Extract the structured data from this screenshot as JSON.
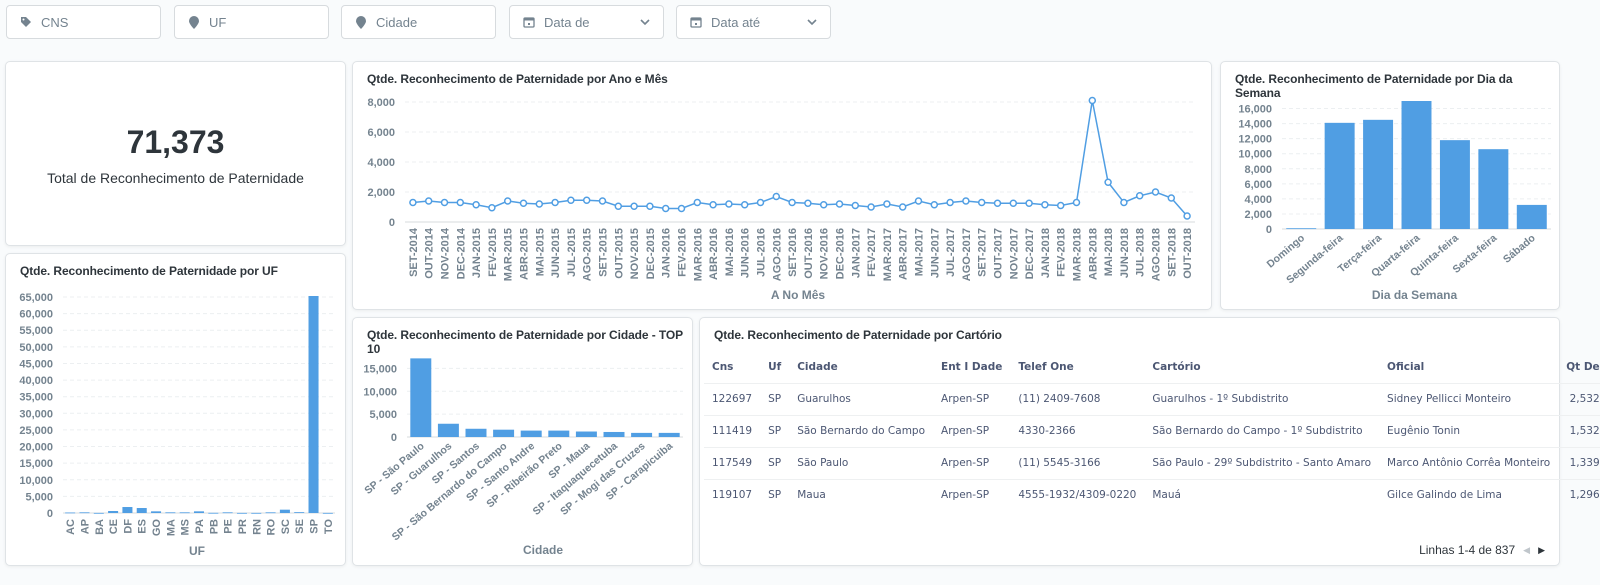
{
  "filters": [
    {
      "label": "CNS",
      "icon": "tag-icon"
    },
    {
      "label": "UF",
      "icon": "location-pin-icon"
    },
    {
      "label": "Cidade",
      "icon": "location-pin-icon"
    },
    {
      "label": "Data de",
      "icon": "calendar-icon",
      "dropdown": true
    },
    {
      "label": "Data até",
      "icon": "calendar-icon",
      "dropdown": true
    }
  ],
  "scalar": {
    "value": "71,373",
    "label": "Total de Reconhecimento de Paternidade"
  },
  "colors": {
    "accent": "#509ee3",
    "muted_text": "#74838f",
    "text": "#2e353b"
  },
  "chart_data": [
    {
      "id": "ano-mes",
      "type": "line",
      "title": "Qtde. Reconhecimento de Paternidade por Ano e Mês",
      "xlabel": "A No Mês",
      "ylabel": "",
      "ylim": [
        0,
        8000
      ],
      "yticks": [
        "0",
        "2,000",
        "4,000",
        "6,000",
        "8,000"
      ],
      "grid": true,
      "x": [
        "SET-2014",
        "OUT-2014",
        "NOV-2014",
        "DEC-2014",
        "JAN-2015",
        "FEV-2015",
        "MAR-2015",
        "ABR-2015",
        "MAI-2015",
        "JUN-2015",
        "JUL-2015",
        "AGO-2015",
        "SET-2015",
        "OUT-2015",
        "NOV-2015",
        "DEC-2015",
        "JAN-2016",
        "FEV-2016",
        "MAR-2016",
        "ABR-2016",
        "MAI-2016",
        "JUN-2016",
        "JUL-2016",
        "AGO-2016",
        "SET-2016",
        "OUT-2016",
        "NOV-2016",
        "DEC-2016",
        "JAN-2017",
        "FEV-2017",
        "MAR-2017",
        "ABR-2017",
        "MAI-2017",
        "JUN-2017",
        "JUL-2017",
        "AGO-2017",
        "SET-2017",
        "OUT-2017",
        "NOV-2017",
        "DEC-2017",
        "JAN-2018",
        "FEV-2018",
        "MAR-2018",
        "ABR-2018",
        "MAI-2018",
        "JUN-2018",
        "JUL-2018",
        "AGO-2018",
        "SET-2018",
        "OUT-2018"
      ],
      "values": [
        1300,
        1400,
        1300,
        1300,
        1150,
        950,
        1400,
        1250,
        1200,
        1300,
        1450,
        1450,
        1400,
        1050,
        1050,
        1050,
        900,
        900,
        1300,
        1150,
        1200,
        1150,
        1300,
        1700,
        1300,
        1250,
        1150,
        1200,
        1100,
        1000,
        1200,
        1000,
        1400,
        1150,
        1300,
        1400,
        1300,
        1250,
        1250,
        1250,
        1150,
        1100,
        1300,
        8100,
        2650,
        1300,
        1750,
        2000,
        1600,
        400
      ]
    },
    {
      "id": "dia-semana",
      "type": "bar",
      "title": "Qtde. Reconhecimento de Paternidade por Dia da Semana",
      "xlabel": "Dia da Semana",
      "ylabel": "",
      "ylim": [
        0,
        17000
      ],
      "yticks": [
        "0",
        "2,000",
        "4,000",
        "6,000",
        "8,000",
        "10,000",
        "12,000",
        "14,000",
        "16,000"
      ],
      "grid": true,
      "categories": [
        "Domingo",
        "Segunda-feira",
        "Terça-feira",
        "Quarta-feira",
        "Quinta-feira",
        "Sexta-feira",
        "Sábado"
      ],
      "values": [
        100,
        14100,
        14500,
        17000,
        11800,
        10600,
        3200
      ]
    },
    {
      "id": "uf",
      "type": "bar",
      "title": "Qtde. Reconhecimento de Paternidade por UF",
      "xlabel": "UF",
      "ylabel": "",
      "ylim": [
        0,
        65000
      ],
      "yticks": [
        "0",
        "5,000",
        "10,000",
        "15,000",
        "20,000",
        "25,000",
        "30,000",
        "35,000",
        "40,000",
        "45,000",
        "50,000",
        "55,000",
        "60,000",
        "65,000"
      ],
      "grid": true,
      "categories": [
        "AC",
        "AP",
        "BA",
        "CE",
        "DF",
        "ES",
        "GO",
        "MA",
        "MS",
        "PA",
        "PB",
        "PE",
        "PR",
        "RN",
        "RO",
        "SC",
        "SE",
        "SP",
        "TO"
      ],
      "values": [
        150,
        200,
        30,
        600,
        1800,
        1500,
        500,
        200,
        200,
        500,
        50,
        200,
        30,
        30,
        200,
        1000,
        250,
        65300,
        30
      ]
    },
    {
      "id": "cidade-top10",
      "type": "bar",
      "title": "Qtde. Reconhecimento de Paternidade por Cidade - TOP 10",
      "xlabel": "Cidade",
      "ylabel": "",
      "ylim": [
        0,
        17500
      ],
      "yticks": [
        "0",
        "5,000",
        "10,000",
        "15,000"
      ],
      "grid": true,
      "categories": [
        "SP - São Paulo",
        "SP - Guarulhos",
        "SP - Santos",
        "SP - São Bernardo do Campo",
        "SP - Santo Andre",
        "SP - Ribeirão Preto",
        "SP - Maua",
        "SP - Itaquaquecetuba",
        "SP - Mogi das Cruzes",
        "SP - Carapicuiba"
      ],
      "values": [
        17200,
        2900,
        1800,
        1600,
        1400,
        1400,
        1200,
        1100,
        900,
        900
      ]
    }
  ],
  "table": {
    "title": "Qtde. Reconhecimento de Paternidade por Cartório",
    "columns": [
      "Cns",
      "Uf",
      "Cidade",
      "Ent I Dade",
      "Telef One",
      "Cartório",
      "Oficial",
      "Qt De"
    ],
    "rows": [
      [
        "122697",
        "SP",
        "Guarulhos",
        "Arpen-SP",
        "(11) 2409-7608",
        "Guarulhos - 1º Subdistrito",
        "Sidney Pellicci Monteiro",
        "2,532"
      ],
      [
        "111419",
        "SP",
        "São Bernardo do Campo",
        "Arpen-SP",
        "4330-2366",
        "São Bernardo do Campo - 1º Subdistrito",
        "Eugênio Tonin",
        "1,532"
      ],
      [
        "117549",
        "SP",
        "São Paulo",
        "Arpen-SP",
        "(11) 5545-3166",
        "São Paulo - 29º Subdistrito - Santo Amaro",
        "Marco Antônio Corrêa Monteiro",
        "1,339"
      ],
      [
        "119107",
        "SP",
        "Maua",
        "Arpen-SP",
        "4555-1932/4309-0220",
        "Mauá",
        "Gilce Galindo de Lima",
        "1,296"
      ]
    ],
    "pagination": "Linhas 1-4 de 837"
  }
}
